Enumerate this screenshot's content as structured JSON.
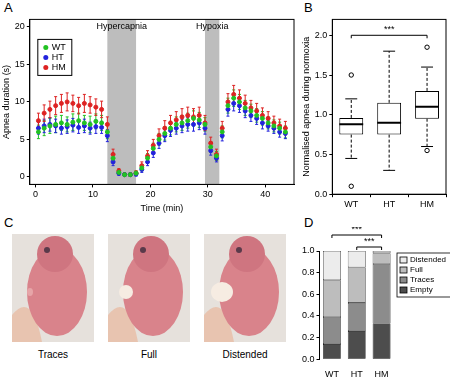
{
  "chart_data": [
    {
      "type": "scatter",
      "title": "A",
      "x_label": "Time (min)",
      "y_label": "Apnea duration (s)",
      "xlim": [
        -1,
        45
      ],
      "xticks": [
        0,
        10,
        20,
        30,
        40
      ],
      "ylim": [
        -1,
        21
      ],
      "yticks": [
        0,
        5,
        10,
        15,
        20
      ],
      "grid": false,
      "legend": "upper left",
      "marker": "circle",
      "spans": [
        {
          "label": "Hypercapnia",
          "start": 12.5,
          "end": 17.5
        },
        {
          "label": "Hypoxia",
          "start": 29.5,
          "end": 32
        }
      ],
      "x": [
        0.5,
        1.5,
        2.5,
        3.5,
        4.5,
        5.5,
        6.5,
        7.5,
        8.5,
        9.5,
        10.5,
        11.5,
        12.5,
        13.5,
        14.5,
        15.5,
        16.5,
        17.5,
        18.5,
        19.5,
        20.5,
        21.5,
        22.5,
        23.5,
        24.5,
        25.5,
        26.5,
        27.5,
        28.5,
        29.5,
        30.5,
        31.5,
        32.5,
        33.5,
        34.5,
        35.5,
        36.5,
        37.5,
        38.5,
        39.5,
        40.5,
        41.5,
        42.5,
        43.5
      ],
      "series": [
        {
          "name": "WT",
          "color": "#22c222",
          "values": [
            6.0,
            6.5,
            6.8,
            7.0,
            7.2,
            7.0,
            7.3,
            7.5,
            7.2,
            7.0,
            7.4,
            7.2,
            6.0,
            2.5,
            0.6,
            0.3,
            0.3,
            0.5,
            1.2,
            2.5,
            3.8,
            5.0,
            5.8,
            6.5,
            7.0,
            7.2,
            7.5,
            7.8,
            7.6,
            7.0,
            4.0,
            2.8,
            6.0,
            9.5,
            10.5,
            10.0,
            9.2,
            8.8,
            8.2,
            7.8,
            7.2,
            6.8,
            6.5,
            6.0
          ],
          "errors": [
            0.9,
            1.0,
            1.0,
            1.1,
            1.0,
            1.0,
            1.1,
            1.0,
            1.0,
            1.1,
            1.0,
            1.0,
            0.9,
            0.6,
            0.3,
            0.2,
            0.2,
            0.3,
            0.4,
            0.6,
            0.7,
            0.8,
            0.9,
            0.9,
            1.0,
            1.0,
            1.0,
            1.0,
            1.0,
            0.9,
            0.7,
            0.6,
            0.8,
            1.0,
            1.1,
            1.0,
            1.0,
            0.9,
            0.9,
            0.9,
            0.8,
            0.8,
            0.8,
            0.8
          ]
        },
        {
          "name": "HT",
          "color": "#2222dd",
          "values": [
            6.5,
            6.8,
            7.0,
            6.8,
            6.5,
            6.7,
            6.9,
            6.6,
            6.8,
            6.5,
            6.7,
            6.6,
            5.5,
            2.0,
            0.5,
            0.3,
            0.3,
            0.4,
            1.0,
            2.0,
            3.2,
            4.5,
            5.5,
            6.2,
            6.5,
            6.8,
            7.0,
            7.0,
            7.2,
            6.5,
            3.5,
            2.5,
            5.5,
            9.0,
            9.8,
            9.5,
            8.8,
            8.2,
            7.8,
            7.2,
            6.8,
            6.5,
            6.0,
            5.8
          ],
          "errors": [
            0.8,
            0.9,
            0.9,
            0.9,
            0.8,
            0.9,
            0.9,
            0.8,
            0.9,
            0.8,
            0.9,
            0.8,
            0.8,
            0.5,
            0.3,
            0.2,
            0.2,
            0.3,
            0.4,
            0.5,
            0.6,
            0.7,
            0.8,
            0.8,
            0.8,
            0.9,
            0.9,
            0.9,
            0.9,
            0.8,
            0.6,
            0.5,
            0.7,
            0.9,
            1.0,
            0.9,
            0.9,
            0.8,
            0.8,
            0.8,
            0.7,
            0.7,
            0.7,
            0.7
          ]
        },
        {
          "name": "HM",
          "color": "#dd2222",
          "values": [
            7.5,
            8.5,
            9.0,
            9.5,
            9.8,
            10.0,
            9.8,
            9.5,
            9.8,
            9.6,
            9.3,
            9.0,
            7.0,
            3.0,
            0.8,
            0.3,
            0.3,
            0.5,
            1.5,
            2.8,
            4.2,
            5.5,
            6.5,
            7.2,
            7.6,
            8.0,
            8.2,
            8.0,
            8.2,
            7.2,
            4.5,
            3.0,
            6.5,
            10.0,
            11.0,
            10.5,
            9.8,
            9.2,
            8.8,
            8.2,
            7.8,
            7.2,
            6.8,
            6.5
          ],
          "errors": [
            1.0,
            1.1,
            1.1,
            1.2,
            1.2,
            1.2,
            1.1,
            1.1,
            1.2,
            1.1,
            1.1,
            1.1,
            1.0,
            0.7,
            0.3,
            0.2,
            0.2,
            0.3,
            0.5,
            0.7,
            0.8,
            0.9,
            1.0,
            1.0,
            1.1,
            1.1,
            1.1,
            1.1,
            1.1,
            1.0,
            0.8,
            0.7,
            0.9,
            1.1,
            1.2,
            1.1,
            1.1,
            1.0,
            1.0,
            1.0,
            0.9,
            0.9,
            0.9,
            0.9
          ]
        }
      ]
    },
    {
      "type": "box",
      "title": "B",
      "y_label": "Normalised apnea during normoxia",
      "categories": [
        "WT",
        "HT",
        "HM"
      ],
      "ylim": [
        0,
        2.2
      ],
      "yticks": [
        {
          "value": 0,
          "label": "0.0"
        },
        {
          "value": 0.5,
          "label": "0.5"
        },
        {
          "value": 1,
          "label": "1.0"
        },
        {
          "value": 1.5,
          "label": "1.5"
        },
        {
          "value": 2,
          "label": "2.0"
        }
      ],
      "grid": false,
      "boxes": [
        {
          "min": 0.45,
          "q1": 0.75,
          "median": 0.88,
          "q3": 0.96,
          "max": 1.2,
          "outliers": [
            0.1,
            1.5
          ]
        },
        {
          "min": 0.3,
          "q1": 0.75,
          "median": 0.9,
          "q3": 1.15,
          "max": 1.8,
          "outliers": []
        },
        {
          "min": 0.6,
          "q1": 0.95,
          "median": 1.1,
          "q3": 1.3,
          "max": 1.6,
          "outliers": [
            0.55,
            1.85
          ]
        }
      ],
      "significance": [
        {
          "text": "***",
          "from": "WT",
          "to": "HM",
          "y": 2.0
        }
      ]
    },
    {
      "type": "photos",
      "title": "C",
      "labels": [
        "Traces",
        "Full",
        "Distended"
      ]
    },
    {
      "type": "bar",
      "title": "D",
      "stacked": true,
      "legend": "right",
      "grid": false,
      "categories": [
        "WT",
        "HT",
        "HM"
      ],
      "ylim": [
        0,
        1
      ],
      "yticks": [
        {
          "value": 0,
          "label": "0.0"
        },
        {
          "value": 0.2,
          "label": "0.2"
        },
        {
          "value": 0.4,
          "label": "0.4"
        },
        {
          "value": 0.6,
          "label": "0.6"
        },
        {
          "value": 0.8,
          "label": "0.8"
        },
        {
          "value": 1,
          "label": "1.0"
        }
      ],
      "series": [
        {
          "name": "Empty",
          "color": "#4d4d4d",
          "values": [
            0.14,
            0.26,
            0.33
          ]
        },
        {
          "name": "Traces",
          "color": "#8c8c8c",
          "values": [
            0.25,
            0.26,
            0.55
          ]
        },
        {
          "name": "Full",
          "color": "#bdbdbd",
          "values": [
            0.34,
            0.33,
            0.1
          ]
        },
        {
          "name": "Distended",
          "color": "#ececec",
          "values": [
            0.27,
            0.15,
            0.02
          ]
        }
      ],
      "significance": [
        {
          "text": "***",
          "from": "WT",
          "to": "HM"
        },
        {
          "text": "***",
          "from": "HT",
          "to": "HM"
        }
      ]
    }
  ]
}
